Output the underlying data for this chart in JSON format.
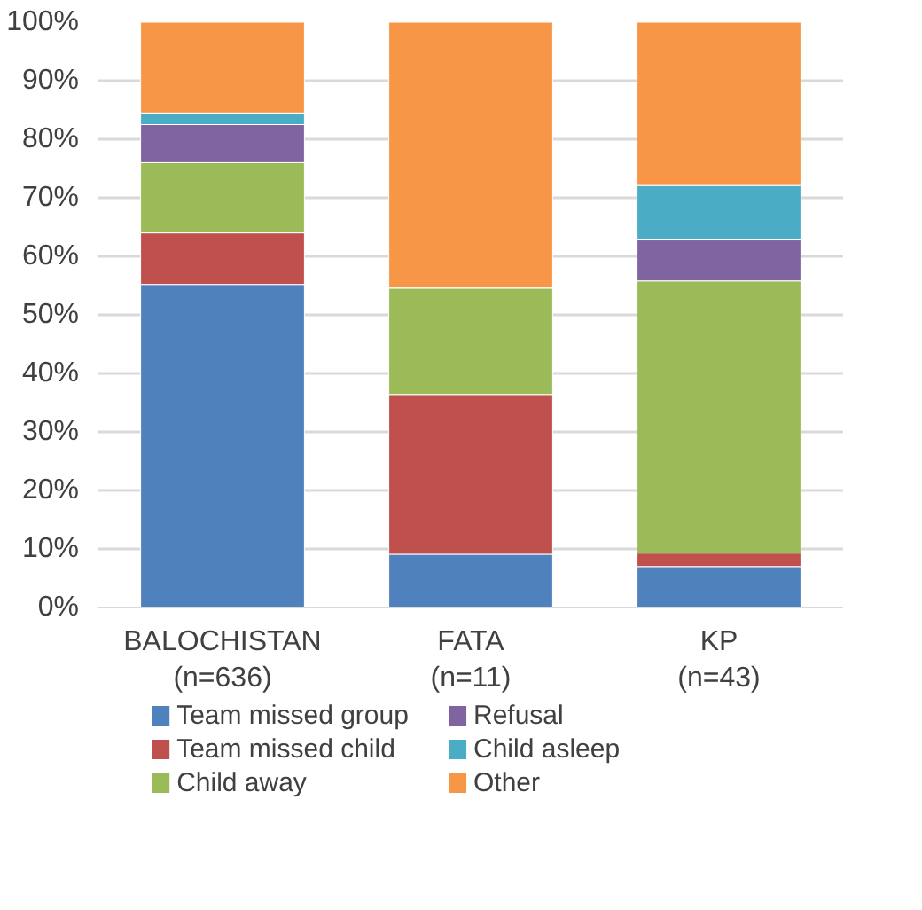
{
  "chart_data": {
    "type": "bar",
    "stacked": true,
    "categories": [
      "BALOCHISTAN\n(n=636)",
      "FATA\n(n=11)",
      "KP\n(n=43)"
    ],
    "ylim": [
      0,
      100
    ],
    "yticks": [
      {
        "value": 0,
        "label": "0%"
      },
      {
        "value": 10,
        "label": "10%"
      },
      {
        "value": 20,
        "label": "20%"
      },
      {
        "value": 30,
        "label": "30%"
      },
      {
        "value": 40,
        "label": "40%"
      },
      {
        "value": 50,
        "label": "50%"
      },
      {
        "value": 60,
        "label": "60%"
      },
      {
        "value": 70,
        "label": "70%"
      },
      {
        "value": 80,
        "label": "80%"
      },
      {
        "value": 90,
        "label": "90%"
      },
      {
        "value": 100,
        "label": "100%"
      }
    ],
    "grid": "y",
    "legend": "bottom",
    "series": [
      {
        "name": "Team missed group",
        "color": "#4f81bd",
        "values": [
          55.2,
          9.1,
          7.0
        ]
      },
      {
        "name": "Team missed child",
        "color": "#c0504d",
        "values": [
          8.8,
          27.3,
          2.3
        ]
      },
      {
        "name": "Child away",
        "color": "#9bbb59",
        "values": [
          12.0,
          18.2,
          46.5
        ]
      },
      {
        "name": "Refusal",
        "color": "#8064a2",
        "values": [
          6.5,
          0,
          7.0
        ]
      },
      {
        "name": "Child asleep",
        "color": "#4bacc6",
        "values": [
          2.0,
          0,
          9.3
        ]
      },
      {
        "name": "Other",
        "color": "#f79646",
        "values": [
          15.5,
          45.4,
          27.9
        ]
      }
    ]
  }
}
